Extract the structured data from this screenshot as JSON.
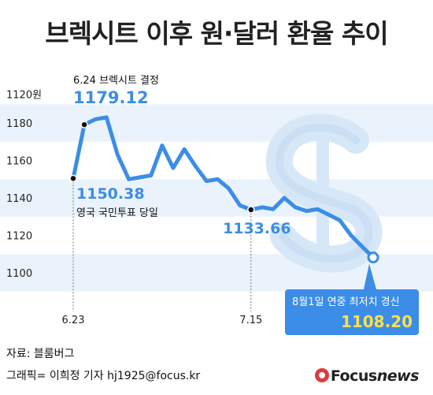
{
  "title": "브렉시트 이후 원·달러 환율 추이",
  "footer": {
    "source": "자료: 블룸버그",
    "credit": "그래픽= 이희정 기자  hj1925@focus.kr",
    "logo_prefix": "Focus",
    "logo_suffix": "news"
  },
  "colors": {
    "line": "#3b8de8",
    "band": "#eaf3fc",
    "highlight_box": "#3b8de8",
    "highlight_value": "#ffe04a"
  },
  "icon": "dollar-sign-icon",
  "chart_data": {
    "type": "line",
    "title": "브렉시트 이후 원·달러 환율 추이",
    "xlabel": "",
    "ylabel": "",
    "y_unit_label": "1120원",
    "ylim": [
      1090,
      1200
    ],
    "y_ticks": [
      1100,
      1120,
      1140,
      1160,
      1180
    ],
    "y_tick_labels": [
      "1100",
      "1120",
      "1140",
      "1160",
      "1180"
    ],
    "x_tick_labels": [
      {
        "label": "6.23",
        "index": 0
      },
      {
        "label": "7.15",
        "index": 16
      }
    ],
    "grid": "horizontal bands",
    "series": [
      {
        "values": [
          1150.38,
          1179.12,
          1182,
          1183,
          1163,
          1150,
          1151,
          1152,
          1168,
          1156,
          1166,
          1157,
          1149,
          1150,
          1145,
          1136,
          1133.66,
          1135,
          1134,
          1140,
          1135,
          1133,
          1134,
          1131,
          1128,
          1120,
          1114,
          1108.2
        ]
      }
    ],
    "annotations": [
      {
        "index": 0,
        "value": "1150.38",
        "label": "영국 국민투표 당일"
      },
      {
        "index": 1,
        "value": "1179.12",
        "label": "6.24 브렉시트 결정"
      },
      {
        "index": 16,
        "value": "1133.66",
        "label": ""
      },
      {
        "index": 27,
        "value": "1108.20",
        "label": "8월1일 연중 최저치 경신"
      }
    ]
  }
}
